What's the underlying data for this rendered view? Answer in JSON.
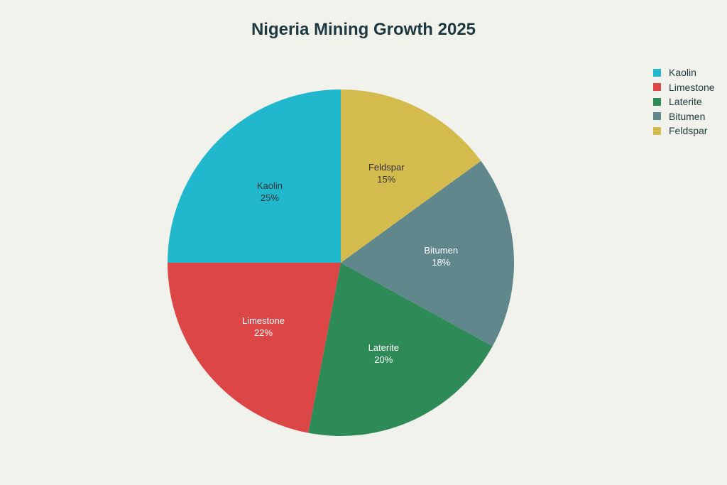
{
  "chart_data": {
    "type": "pie",
    "title": "Nigeria Mining Growth 2025",
    "categories": [
      "Kaolin",
      "Limestone",
      "Laterite",
      "Bitumen",
      "Feldspar"
    ],
    "values": [
      25,
      22,
      20,
      18,
      15
    ],
    "value_labels": [
      "25%",
      "22%",
      "20%",
      "18%",
      "15%"
    ],
    "colors": [
      "#21b8cd",
      "#dc4646",
      "#2e8b57",
      "#5f878c",
      "#d4bb4e"
    ],
    "label_colors": [
      "#333333",
      "#ffffff",
      "#ffffff",
      "#ffffff",
      "#333333"
    ],
    "legend_position": "top-right",
    "start_angle_deg": 0,
    "direction": "counterclockwise"
  }
}
